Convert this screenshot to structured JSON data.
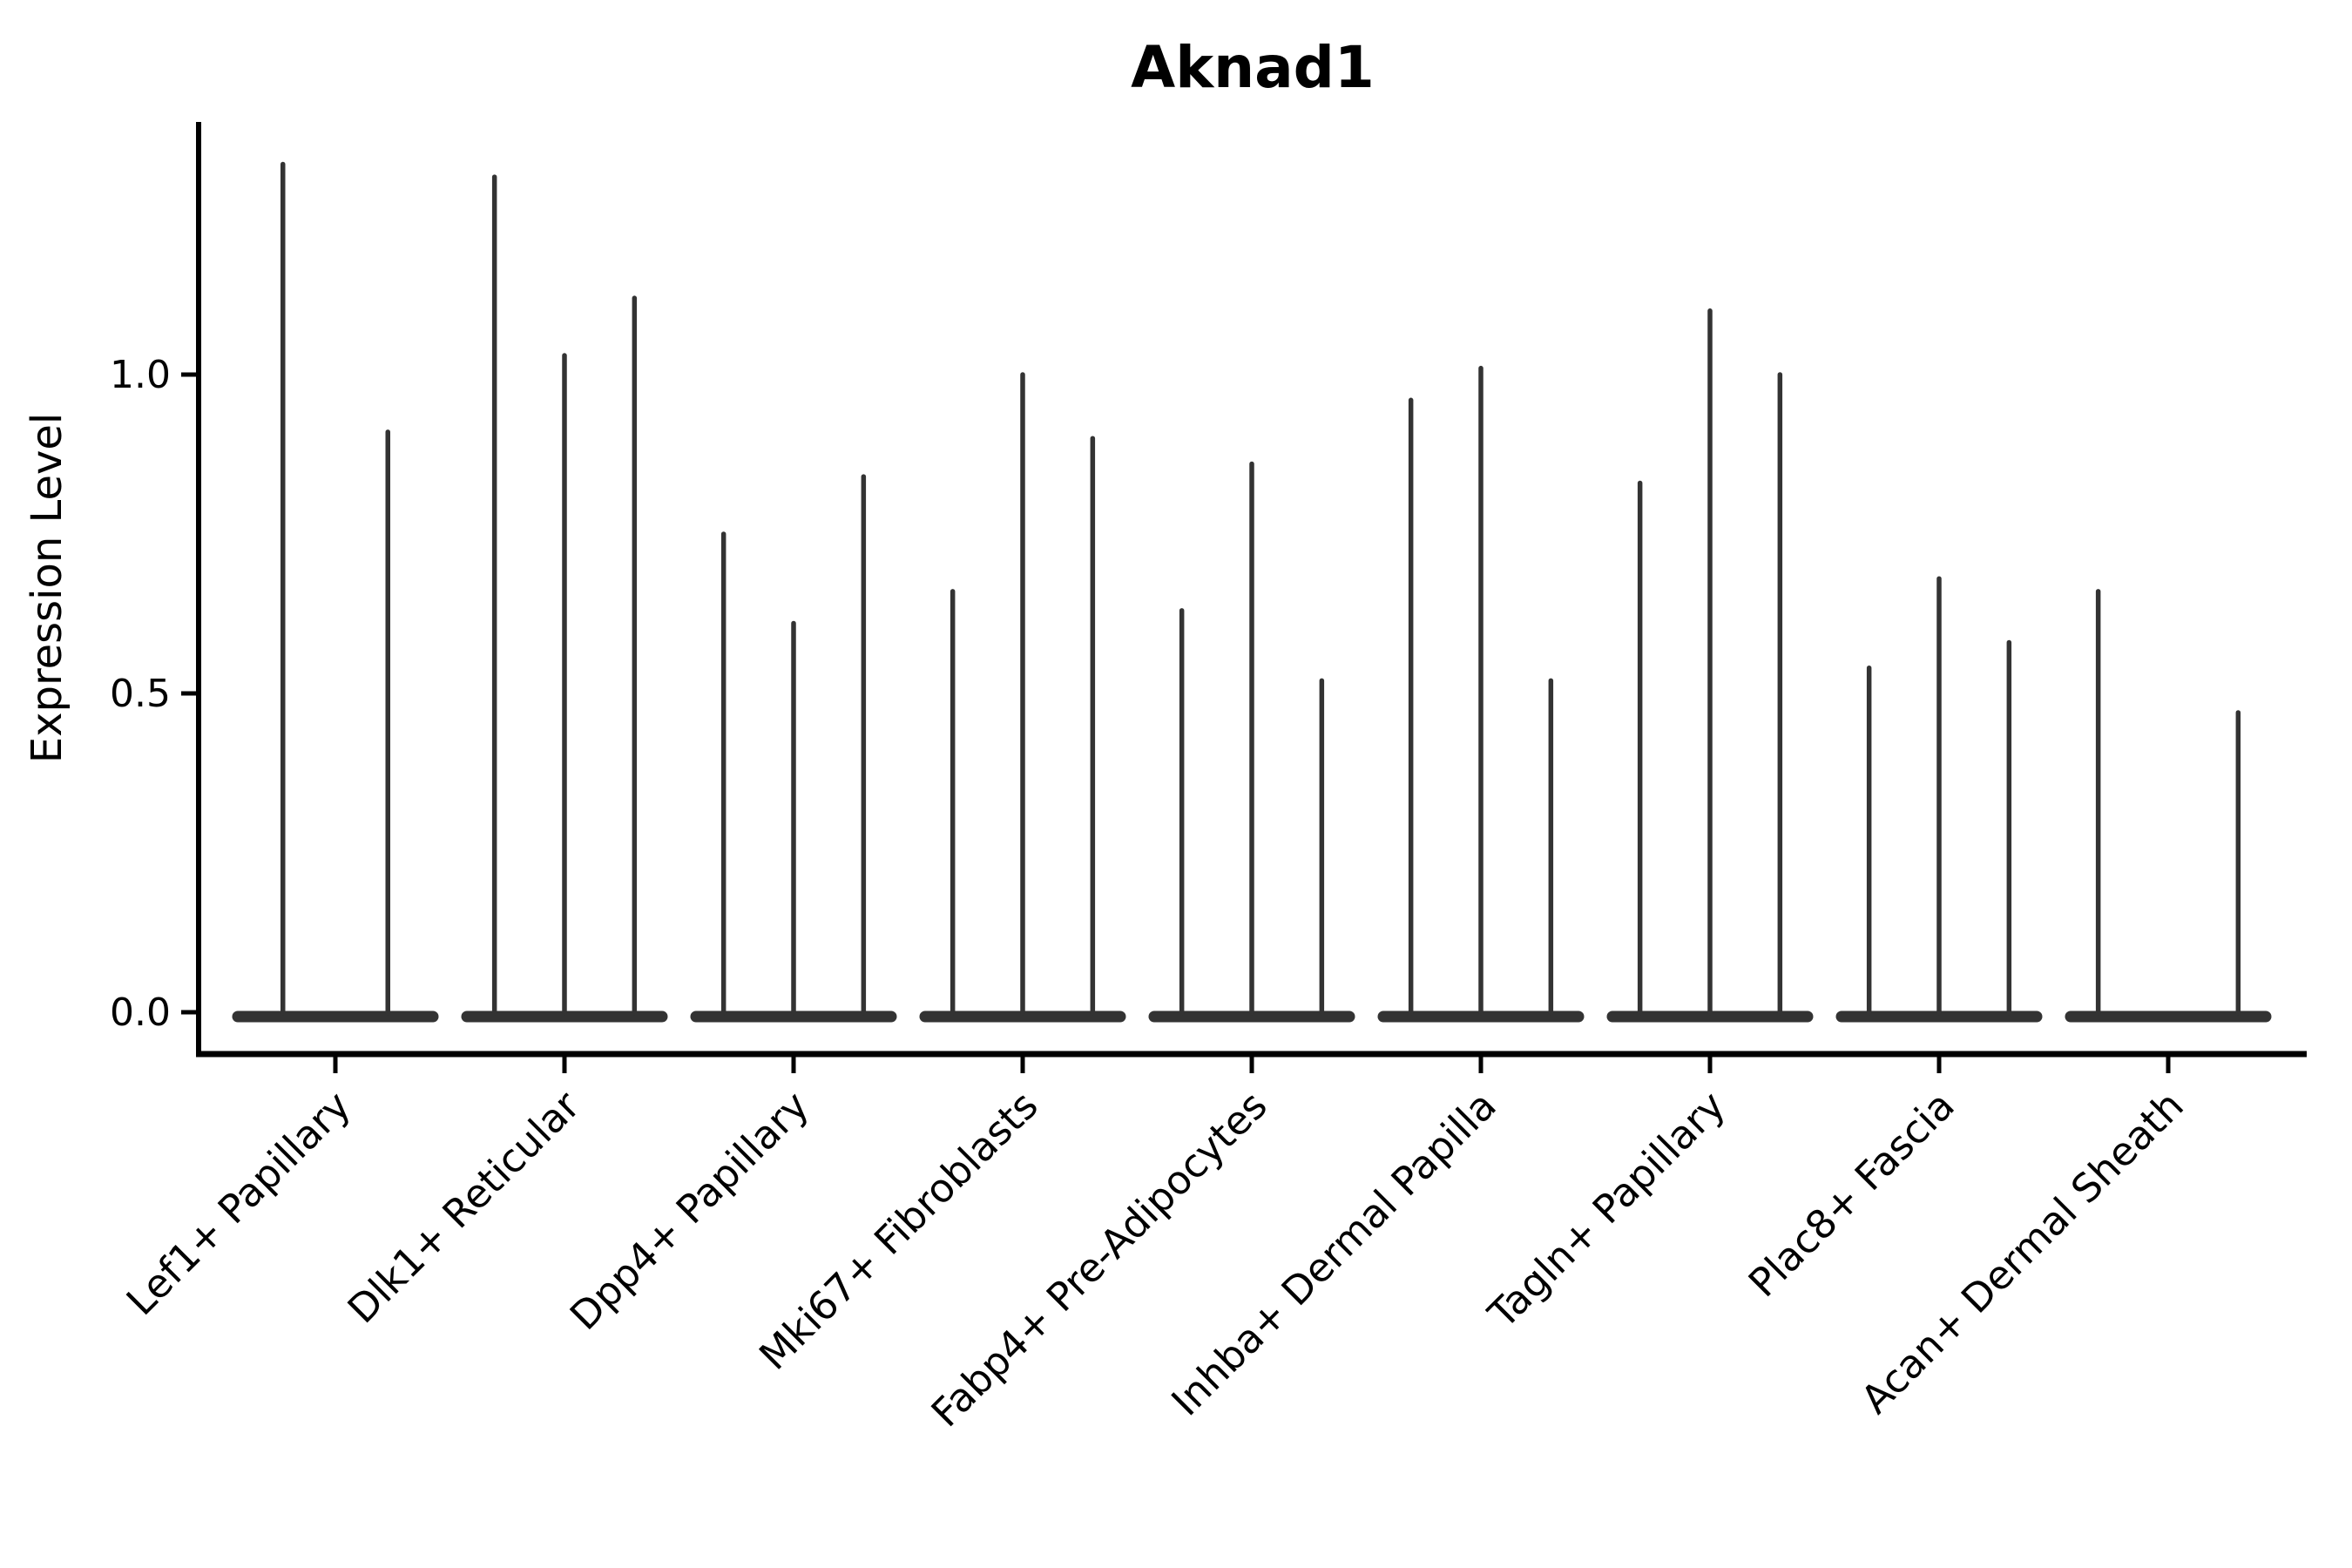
{
  "chart_data": {
    "type": "violin",
    "title": "Aknad1",
    "ylabel": "Expression Level",
    "xlabel": "",
    "ylim": [
      0,
      1.4
    ],
    "grid": false,
    "legend": "none",
    "yticks": [
      {
        "label": "0.0",
        "value": 0
      },
      {
        "label": "0.5",
        "value": 0.5
      },
      {
        "label": "1.0",
        "value": 1
      }
    ],
    "categories": [
      "Lef1+ Papillary",
      "Dlk1+ Reticular",
      "Dpp4+ Papillary",
      "Mki67+ Fibroblasts",
      "Fabp4+ Pre-Adipocytes",
      "Inhba+ Dermal Papilla",
      "Tagln+ Papillary",
      "Plac8+ Fascia",
      "Acan+ Dermal Sheath"
    ],
    "groups": [
      {
        "label": "Lef1+ Papillary",
        "violin_max_values": [
          1.33,
          0.91
        ]
      },
      {
        "label": "Dlk1+ Reticular",
        "violin_max_values": [
          1.31,
          1.03,
          1.12
        ]
      },
      {
        "label": "Dpp4+ Papillary",
        "violin_max_values": [
          0.75,
          0.61,
          0.84
        ]
      },
      {
        "label": "Mki67+ Fibroblasts",
        "violin_max_values": [
          0.66,
          1.0,
          0.9
        ]
      },
      {
        "label": "Fabp4+ Pre-Adipocytes",
        "violin_max_values": [
          0.63,
          0.86,
          0.52
        ]
      },
      {
        "label": "Inhba+ Dermal Papilla",
        "violin_max_values": [
          0.96,
          1.01,
          0.52
        ]
      },
      {
        "label": "Tagln+ Papillary",
        "violin_max_values": [
          0.83,
          1.1,
          1.0
        ]
      },
      {
        "label": "Plac8+ Fascia",
        "violin_max_values": [
          0.54,
          0.68,
          0.58
        ]
      },
      {
        "label": "Acan+ Dermal Sheath",
        "violin_max_values": [
          0.66,
          0,
          0.47
        ]
      }
    ],
    "annotation": "all violins collapsed at 0 with thin density spikes up to listed max values",
    "colors": {
      "violin": "#333333",
      "axis": "#000000",
      "background": "#ffffff"
    }
  }
}
